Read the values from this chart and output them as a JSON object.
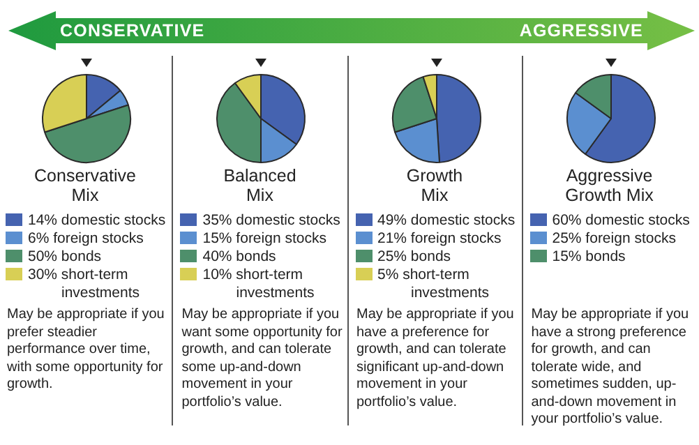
{
  "chart_data": [
    {
      "type": "other",
      "annotations": [
        "CONSERVATIVE",
        "AGGRESSIVE"
      ]
    },
    {
      "type": "pie",
      "title": "Conservative Mix",
      "categories": [
        "domestic stocks",
        "foreign stocks",
        "bonds",
        "short-term investments"
      ],
      "values": [
        14,
        6,
        50,
        30
      ],
      "value_labels": [
        "14%",
        "6%",
        "50%",
        "30%"
      ],
      "colors": [
        "#4563b0",
        "#5b8fd0",
        "#4e8f6b",
        "#d8cf55"
      ],
      "legend": "bottom",
      "annotations": [
        "May be appropriate if you prefer steadier performance over time, with some opportunity for growth."
      ]
    },
    {
      "type": "pie",
      "title": "Balanced Mix",
      "categories": [
        "domestic stocks",
        "foreign stocks",
        "bonds",
        "short-term investments"
      ],
      "values": [
        35,
        15,
        40,
        10
      ],
      "value_labels": [
        "35%",
        "15%",
        "40%",
        "10%"
      ],
      "colors": [
        "#4563b0",
        "#5b8fd0",
        "#4e8f6b",
        "#d8cf55"
      ],
      "legend": "bottom",
      "annotations": [
        "May be appropriate if you want some opportunity for growth, and can tolerate some up-and-down movement in your portfolio’s value."
      ]
    },
    {
      "type": "pie",
      "title": "Growth Mix",
      "categories": [
        "domestic stocks",
        "foreign stocks",
        "bonds",
        "short-term investments"
      ],
      "values": [
        49,
        21,
        25,
        5
      ],
      "value_labels": [
        "49%",
        "21%",
        "25%",
        "5%"
      ],
      "colors": [
        "#4563b0",
        "#5b8fd0",
        "#4e8f6b",
        "#d8cf55"
      ],
      "legend": "bottom",
      "annotations": [
        "May be appropriate if you have a preference for growth, and can tolerate significant up-and-down movement in your portfolio’s value."
      ]
    },
    {
      "type": "pie",
      "title": "Aggressive Growth Mix",
      "categories": [
        "domestic stocks",
        "foreign stocks",
        "bonds"
      ],
      "values": [
        60,
        25,
        15
      ],
      "value_labels": [
        "60%",
        "25%",
        "15%"
      ],
      "colors": [
        "#4563b0",
        "#5b8fd0",
        "#4e8f6b"
      ],
      "legend": "bottom",
      "annotations": [
        "May be appropriate if you have a strong preference for growth, and can tolerate wide, and sometimes sudden, up-and-down movement in your portfolio’s value."
      ]
    }
  ]
}
